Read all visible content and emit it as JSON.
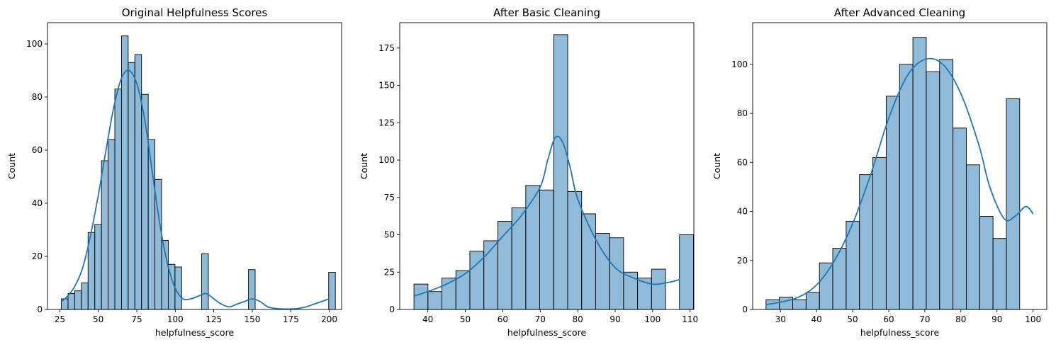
{
  "chart_data": [
    {
      "type": "bar",
      "title": "Original Helpfulness Scores",
      "xlabel": "helpfulness_score",
      "ylabel": "Count",
      "xlim": [
        17,
        208
      ],
      "ylim": [
        0,
        108
      ],
      "xticks": [
        25,
        50,
        75,
        100,
        125,
        150,
        175,
        200
      ],
      "yticks": [
        0,
        20,
        40,
        60,
        80,
        100
      ],
      "bin_start": 26,
      "bin_width": 4.34,
      "counts": [
        4,
        6,
        7,
        10,
        29,
        32,
        56,
        64,
        83,
        103,
        93,
        96,
        81,
        64,
        49,
        26,
        17,
        16,
        0,
        0,
        0,
        21,
        0,
        0,
        0,
        0,
        0,
        0,
        15,
        0,
        0,
        0,
        0,
        0,
        0,
        0,
        0,
        0,
        0,
        0,
        14
      ],
      "kde": {
        "x": [
          26,
          30,
          35,
          40,
          45,
          50,
          55,
          60,
          65,
          70,
          75,
          80,
          85,
          90,
          95,
          100,
          105,
          110,
          115,
          120,
          125,
          130,
          135,
          140,
          145,
          150,
          155,
          160,
          165,
          170,
          175,
          180,
          185,
          190,
          195,
          200
        ],
        "y": [
          3,
          5,
          9,
          16,
          28,
          43,
          60,
          76,
          87,
          90,
          85,
          72,
          52,
          32,
          17,
          8,
          4,
          4,
          5,
          6,
          4,
          2,
          1,
          2,
          3,
          4,
          3,
          1,
          0.4,
          0.2,
          0.2,
          0.4,
          1,
          2,
          3,
          4
        ]
      }
    },
    {
      "type": "bar",
      "title": "After Basic Cleaning",
      "xlabel": "helpfulness_score",
      "ylabel": "Count",
      "xlim": [
        32.5,
        111
      ],
      "ylim": [
        0,
        192
      ],
      "xticks": [
        40,
        50,
        60,
        70,
        80,
        90,
        100,
        110
      ],
      "yticks": [
        0,
        25,
        50,
        75,
        100,
        125,
        150,
        175
      ],
      "bin_start": 36.3,
      "bin_width": 3.73,
      "counts": [
        17,
        12,
        21,
        26,
        39,
        46,
        59,
        68,
        83,
        80,
        184,
        79,
        64,
        51,
        48,
        25,
        21,
        27,
        0,
        50
      ],
      "kde": {
        "x": [
          36.3,
          40,
          45,
          50,
          55,
          60,
          65,
          70,
          72,
          74,
          76,
          78,
          80,
          85,
          90,
          95,
          100,
          104,
          107.3
        ],
        "y": [
          9,
          12,
          17,
          24,
          35,
          49,
          63,
          82,
          100,
          115,
          112,
          95,
          74,
          46,
          28,
          21,
          17,
          18,
          20
        ]
      }
    },
    {
      "type": "bar",
      "title": "After Advanced Cleaning",
      "xlabel": "helpfulness_score",
      "ylabel": "Count",
      "xlim": [
        22.3,
        103.8
      ],
      "ylim": [
        0,
        117
      ],
      "xticks": [
        30,
        40,
        50,
        60,
        70,
        80,
        90,
        100
      ],
      "yticks": [
        0,
        20,
        40,
        60,
        80,
        100
      ],
      "bin_start": 26,
      "bin_width": 3.7,
      "counts": [
        4,
        5,
        4,
        7,
        19,
        25,
        36,
        55,
        62,
        87,
        100,
        111,
        97,
        102,
        74,
        59,
        38,
        29,
        86
      ],
      "kde": {
        "x": [
          26,
          30,
          35,
          40,
          45,
          50,
          55,
          60,
          65,
          70,
          75,
          80,
          85,
          88,
          92,
          95,
          98,
          100
        ],
        "y": [
          2,
          3,
          5,
          10,
          20,
          35,
          55,
          78,
          95,
          102,
          100,
          88,
          67,
          50,
          37,
          38,
          42,
          39
        ]
      }
    }
  ]
}
